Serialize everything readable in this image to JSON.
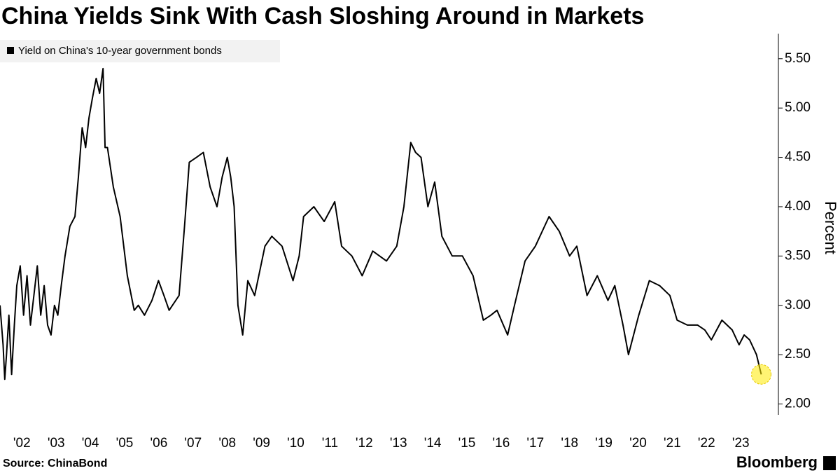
{
  "chart_data": {
    "type": "line",
    "title": "China Yields Sink With Cash Sloshing Around in Markets",
    "y_axis_label": "Percent",
    "source": "Source: ChinaBond",
    "brand": "Bloomberg",
    "legend_position": "top-left",
    "grid": false,
    "x": [
      2001.86,
      2001.95,
      2002.0,
      2002.05,
      2002.12,
      2002.2,
      2002.28,
      2002.35,
      2002.45,
      2002.55,
      2002.65,
      2002.75,
      2002.85,
      2002.95,
      2003.05,
      2003.15,
      2003.25,
      2003.35,
      2003.45,
      2003.55,
      2003.65,
      2003.76,
      2003.9,
      2004.05,
      2004.15,
      2004.26,
      2004.36,
      2004.46,
      2004.56,
      2004.67,
      2004.77,
      2004.87,
      2004.93,
      2005.0,
      2005.17,
      2005.37,
      2005.58,
      2005.78,
      2005.9,
      2006.08,
      2006.3,
      2006.49,
      2006.65,
      2006.8,
      2007.09,
      2007.25,
      2007.39,
      2007.6,
      2007.8,
      2008.0,
      2008.2,
      2008.35,
      2008.5,
      2008.6,
      2008.7,
      2008.81,
      2008.95,
      2009.1,
      2009.3,
      2009.6,
      2009.8,
      2010.1,
      2010.42,
      2010.6,
      2010.73,
      2011.03,
      2011.33,
      2011.64,
      2011.84,
      2012.14,
      2012.44,
      2012.75,
      2013.15,
      2013.45,
      2013.66,
      2013.86,
      2014.0,
      2014.16,
      2014.36,
      2014.56,
      2014.77,
      2015.07,
      2015.37,
      2015.68,
      2015.98,
      2016.2,
      2016.38,
      2016.69,
      2016.89,
      2017.2,
      2017.5,
      2017.9,
      2018.2,
      2018.5,
      2018.71,
      2019.01,
      2019.31,
      2019.62,
      2019.82,
      2020.06,
      2020.22,
      2020.52,
      2020.83,
      2021.13,
      2021.43,
      2021.64,
      2021.94,
      2022.24,
      2022.45,
      2022.64,
      2022.95,
      2023.25,
      2023.45,
      2023.6,
      2023.76,
      2023.96,
      2024.1
    ],
    "series": [
      {
        "name": "Yield on China's 10-year government bonds",
        "color": "#000000",
        "values": [
          3.0,
          2.6,
          2.25,
          2.5,
          2.9,
          2.3,
          2.8,
          3.2,
          3.4,
          2.9,
          3.3,
          2.8,
          3.1,
          3.4,
          2.9,
          3.2,
          2.8,
          2.7,
          3.0,
          2.9,
          3.2,
          3.5,
          3.8,
          3.9,
          4.3,
          4.8,
          4.6,
          4.9,
          5.1,
          5.3,
          5.15,
          5.4,
          4.6,
          4.6,
          4.2,
          3.9,
          3.3,
          2.95,
          3.0,
          2.9,
          3.05,
          3.25,
          3.1,
          2.95,
          3.1,
          3.8,
          4.45,
          4.5,
          4.55,
          4.2,
          4.0,
          4.3,
          4.5,
          4.3,
          4.0,
          3.0,
          2.7,
          3.25,
          3.1,
          3.6,
          3.7,
          3.6,
          3.25,
          3.5,
          3.9,
          4.0,
          3.85,
          4.05,
          3.6,
          3.5,
          3.3,
          3.55,
          3.45,
          3.6,
          4.0,
          4.65,
          4.55,
          4.5,
          4.0,
          4.25,
          3.7,
          3.5,
          3.5,
          3.3,
          2.85,
          2.9,
          2.95,
          2.7,
          3.0,
          3.45,
          3.6,
          3.9,
          3.75,
          3.5,
          3.6,
          3.1,
          3.3,
          3.05,
          3.2,
          2.8,
          2.5,
          2.9,
          3.25,
          3.2,
          3.1,
          2.85,
          2.8,
          2.8,
          2.75,
          2.65,
          2.85,
          2.75,
          2.6,
          2.7,
          2.65,
          2.5,
          2.3
        ]
      }
    ],
    "xlim": [
      2001.86,
      2024.6
    ],
    "xticks": [
      {
        "value": 2002.5,
        "label": "'02"
      },
      {
        "value": 2003.5,
        "label": "'03"
      },
      {
        "value": 2004.5,
        "label": "'04"
      },
      {
        "value": 2005.5,
        "label": "'05"
      },
      {
        "value": 2006.5,
        "label": "'06"
      },
      {
        "value": 2007.5,
        "label": "'07"
      },
      {
        "value": 2008.5,
        "label": "'08"
      },
      {
        "value": 2009.5,
        "label": "'09"
      },
      {
        "value": 2010.5,
        "label": "'10"
      },
      {
        "value": 2011.5,
        "label": "'11"
      },
      {
        "value": 2012.5,
        "label": "'12"
      },
      {
        "value": 2013.5,
        "label": "'13"
      },
      {
        "value": 2014.5,
        "label": "'14"
      },
      {
        "value": 2015.5,
        "label": "'15"
      },
      {
        "value": 2016.5,
        "label": "'16"
      },
      {
        "value": 2017.5,
        "label": "'17"
      },
      {
        "value": 2018.5,
        "label": "'18"
      },
      {
        "value": 2019.5,
        "label": "'19"
      },
      {
        "value": 2020.5,
        "label": "'20"
      },
      {
        "value": 2021.5,
        "label": "'21"
      },
      {
        "value": 2022.5,
        "label": "'22"
      },
      {
        "value": 2023.5,
        "label": "'23"
      }
    ],
    "ylim": [
      1.89,
      5.74
    ],
    "yticks": [
      {
        "value": 2,
        "label": "2.00"
      },
      {
        "value": 2.5,
        "label": "2.50"
      },
      {
        "value": 3,
        "label": "3.00"
      },
      {
        "value": 3.5,
        "label": "3.50"
      },
      {
        "value": 4,
        "label": "4.00"
      },
      {
        "value": 4.5,
        "label": "4.50"
      },
      {
        "value": 5,
        "label": "5.00"
      },
      {
        "value": 5.5,
        "label": "5.50"
      }
    ]
  }
}
